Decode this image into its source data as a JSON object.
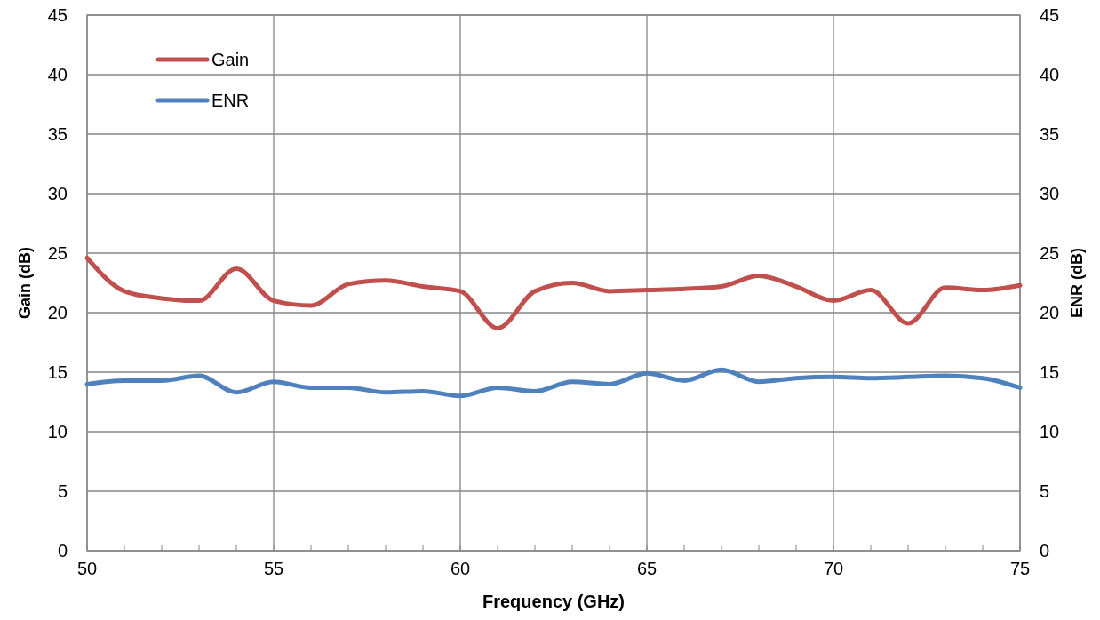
{
  "chart_data": {
    "type": "line",
    "xlabel": "Frequency (GHz)",
    "ylabel": "Gain (dB)",
    "y2label": "ENR (dB)",
    "x": [
      50,
      51,
      52,
      53,
      54,
      55,
      56,
      57,
      58,
      59,
      60,
      61,
      62,
      63,
      64,
      65,
      66,
      67,
      68,
      69,
      70,
      71,
      72,
      73,
      74,
      75
    ],
    "series": [
      {
        "name": "Gain",
        "color": "#c0504d",
        "values": [
          24.6,
          21.8,
          21.2,
          21.0,
          23.7,
          21.0,
          20.6,
          22.4,
          22.7,
          22.2,
          21.8,
          18.7,
          21.8,
          22.5,
          21.8,
          21.9,
          22.0,
          22.2,
          23.1,
          22.2,
          21.0,
          21.9,
          19.1,
          22.1,
          21.9,
          22.3
        ]
      },
      {
        "name": "ENR",
        "color": "#4f81bd",
        "axis": "y2",
        "values": [
          14.0,
          14.3,
          14.3,
          14.7,
          13.3,
          14.2,
          13.7,
          13.7,
          13.3,
          13.4,
          13.0,
          13.7,
          13.4,
          14.2,
          14.0,
          14.9,
          14.3,
          15.2,
          14.2,
          14.5,
          14.6,
          14.5,
          14.6,
          14.7,
          14.5,
          13.7
        ]
      }
    ],
    "xlim": [
      50,
      75
    ],
    "xticks": [
      50,
      55,
      60,
      65,
      70,
      75
    ],
    "ylim": [
      0,
      45
    ],
    "yticks": [
      0,
      5,
      10,
      15,
      20,
      25,
      30,
      35,
      40,
      45
    ],
    "y2lim": [
      0,
      45
    ],
    "y2ticks": [
      0,
      5,
      10,
      15,
      20,
      25,
      30,
      35,
      40,
      45
    ],
    "grid": true,
    "legend": "top left",
    "marker": "none",
    "line_style": "solid"
  }
}
